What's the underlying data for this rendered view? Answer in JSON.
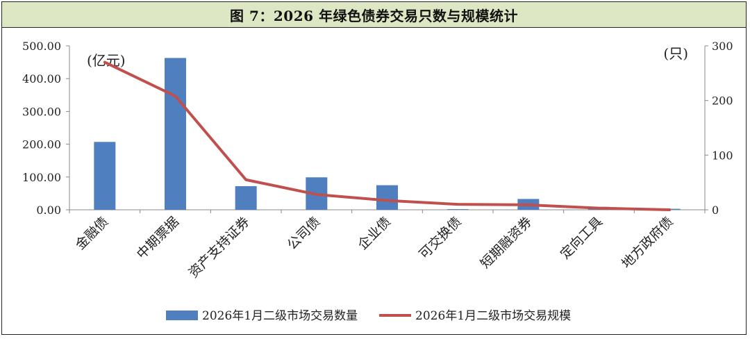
{
  "title": "图 7：2026 年绿色债券交易只数与规模统计",
  "chart_data": {
    "type": "bar+line",
    "title": "图 7：2026 年绿色债券交易只数与规模统计",
    "categories": [
      "金融债",
      "中期票据",
      "资产支持证券",
      "公司债",
      "企业债",
      "可交换债",
      "短期融资券",
      "定向工具",
      "地方政府债"
    ],
    "left_axis": {
      "unit": "(亿元)",
      "ylim": [
        0,
        500
      ],
      "ticks": [
        "0.00",
        "100.00",
        "200.00",
        "300.00",
        "400.00",
        "500.00"
      ]
    },
    "right_axis": {
      "unit": "(只)",
      "ylim": [
        0,
        300
      ],
      "ticks": [
        "0",
        "100",
        "200",
        "300"
      ]
    },
    "series": [
      {
        "name": "2026年1月二级市场交易数量",
        "type": "bar",
        "axis": "left",
        "color": "#4f7fbf",
        "values": [
          207,
          463,
          72,
          99,
          75,
          2,
          33,
          9,
          3
        ]
      },
      {
        "name": "2026年1月二级市场交易规模",
        "type": "line",
        "axis": "right",
        "color": "#c0504d",
        "values": [
          270,
          208,
          55,
          28,
          17,
          10,
          9,
          3,
          0
        ]
      }
    ],
    "legend_position": "bottom",
    "grid": false
  }
}
